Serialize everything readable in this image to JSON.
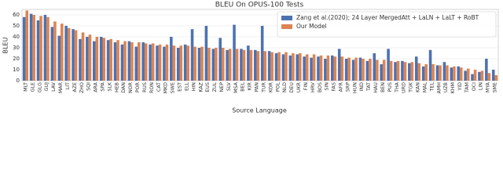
{
  "chart_data": {
    "type": "bar",
    "title": "BLEU On OPUS-100 Tests",
    "x_label": "Source Language",
    "y_label": "BLEU",
    "categories": [
      "MLT",
      "GLE",
      "GLG",
      "GUJ",
      "LAV",
      "MAR",
      "LIT",
      "AZE",
      "ZHO",
      "SQI",
      "ARA",
      "SPA",
      "SLK",
      "HEB",
      "DAN",
      "NOR",
      "POR",
      "RUS",
      "RON",
      "CAT",
      "MKD",
      "SWE",
      "EST",
      "ELL",
      "HIN",
      "KAZ",
      "EUS",
      "ZUL",
      "NEP",
      "SLV",
      "MSA",
      "BEL",
      "KIR",
      "PAN",
      "TUR",
      "KOR",
      "POL",
      "NLD",
      "DEU",
      "UKR",
      "FIN",
      "HRV",
      "BOS",
      "SIN",
      "FAS",
      "AFR",
      "SRP",
      "HUN",
      "IND",
      "TAT",
      "HAU",
      "BEN",
      "PUS",
      "THA",
      "URD",
      "TGK",
      "KAN",
      "MAL",
      "TEL",
      "AMH",
      "UZB",
      "KHM",
      "YID",
      "TAM",
      "OCI",
      "LIN",
      "MYA",
      "SME"
    ],
    "series": [
      {
        "name": "Zang et al.(2020); 24 Layer MergedAtt + LaLN + LaLT + RoBT",
        "color": "#4c72b0",
        "values": [
          58,
          61,
          55,
          60,
          49,
          41,
          50,
          47,
          38,
          40,
          36,
          40,
          37,
          35,
          33,
          36,
          31,
          35,
          33,
          32,
          31,
          40,
          30,
          33,
          47,
          30,
          50,
          29,
          39,
          28,
          51,
          29,
          32,
          28,
          50,
          27,
          25,
          24,
          23,
          24,
          22,
          21,
          22,
          20,
          23,
          29,
          20,
          19,
          21,
          18,
          25,
          15,
          29,
          17,
          18,
          16,
          22,
          13,
          28,
          14,
          17,
          12,
          13,
          9,
          6,
          8,
          20,
          10
        ]
      },
      {
        "name": "Our Model",
        "color": "#dd8452",
        "values": [
          64,
          60,
          59,
          58,
          54,
          52,
          48,
          46,
          44,
          42,
          40,
          39,
          38,
          37,
          36,
          35,
          35,
          34,
          34,
          33,
          33,
          32,
          32,
          32,
          31,
          31,
          30,
          30,
          30,
          29,
          29,
          28,
          28,
          27,
          27,
          26,
          26,
          26,
          25,
          25,
          24,
          24,
          23,
          23,
          22,
          22,
          21,
          21,
          20,
          20,
          19,
          19,
          18,
          18,
          17,
          17,
          16,
          15,
          15,
          14,
          14,
          13,
          12,
          11,
          10,
          9,
          7,
          5
        ]
      }
    ],
    "ylim": [
      0,
      65
    ],
    "yticks": [
      0,
      10,
      20,
      30,
      40,
      50,
      60
    ],
    "grid": true,
    "legend": "upper right"
  }
}
